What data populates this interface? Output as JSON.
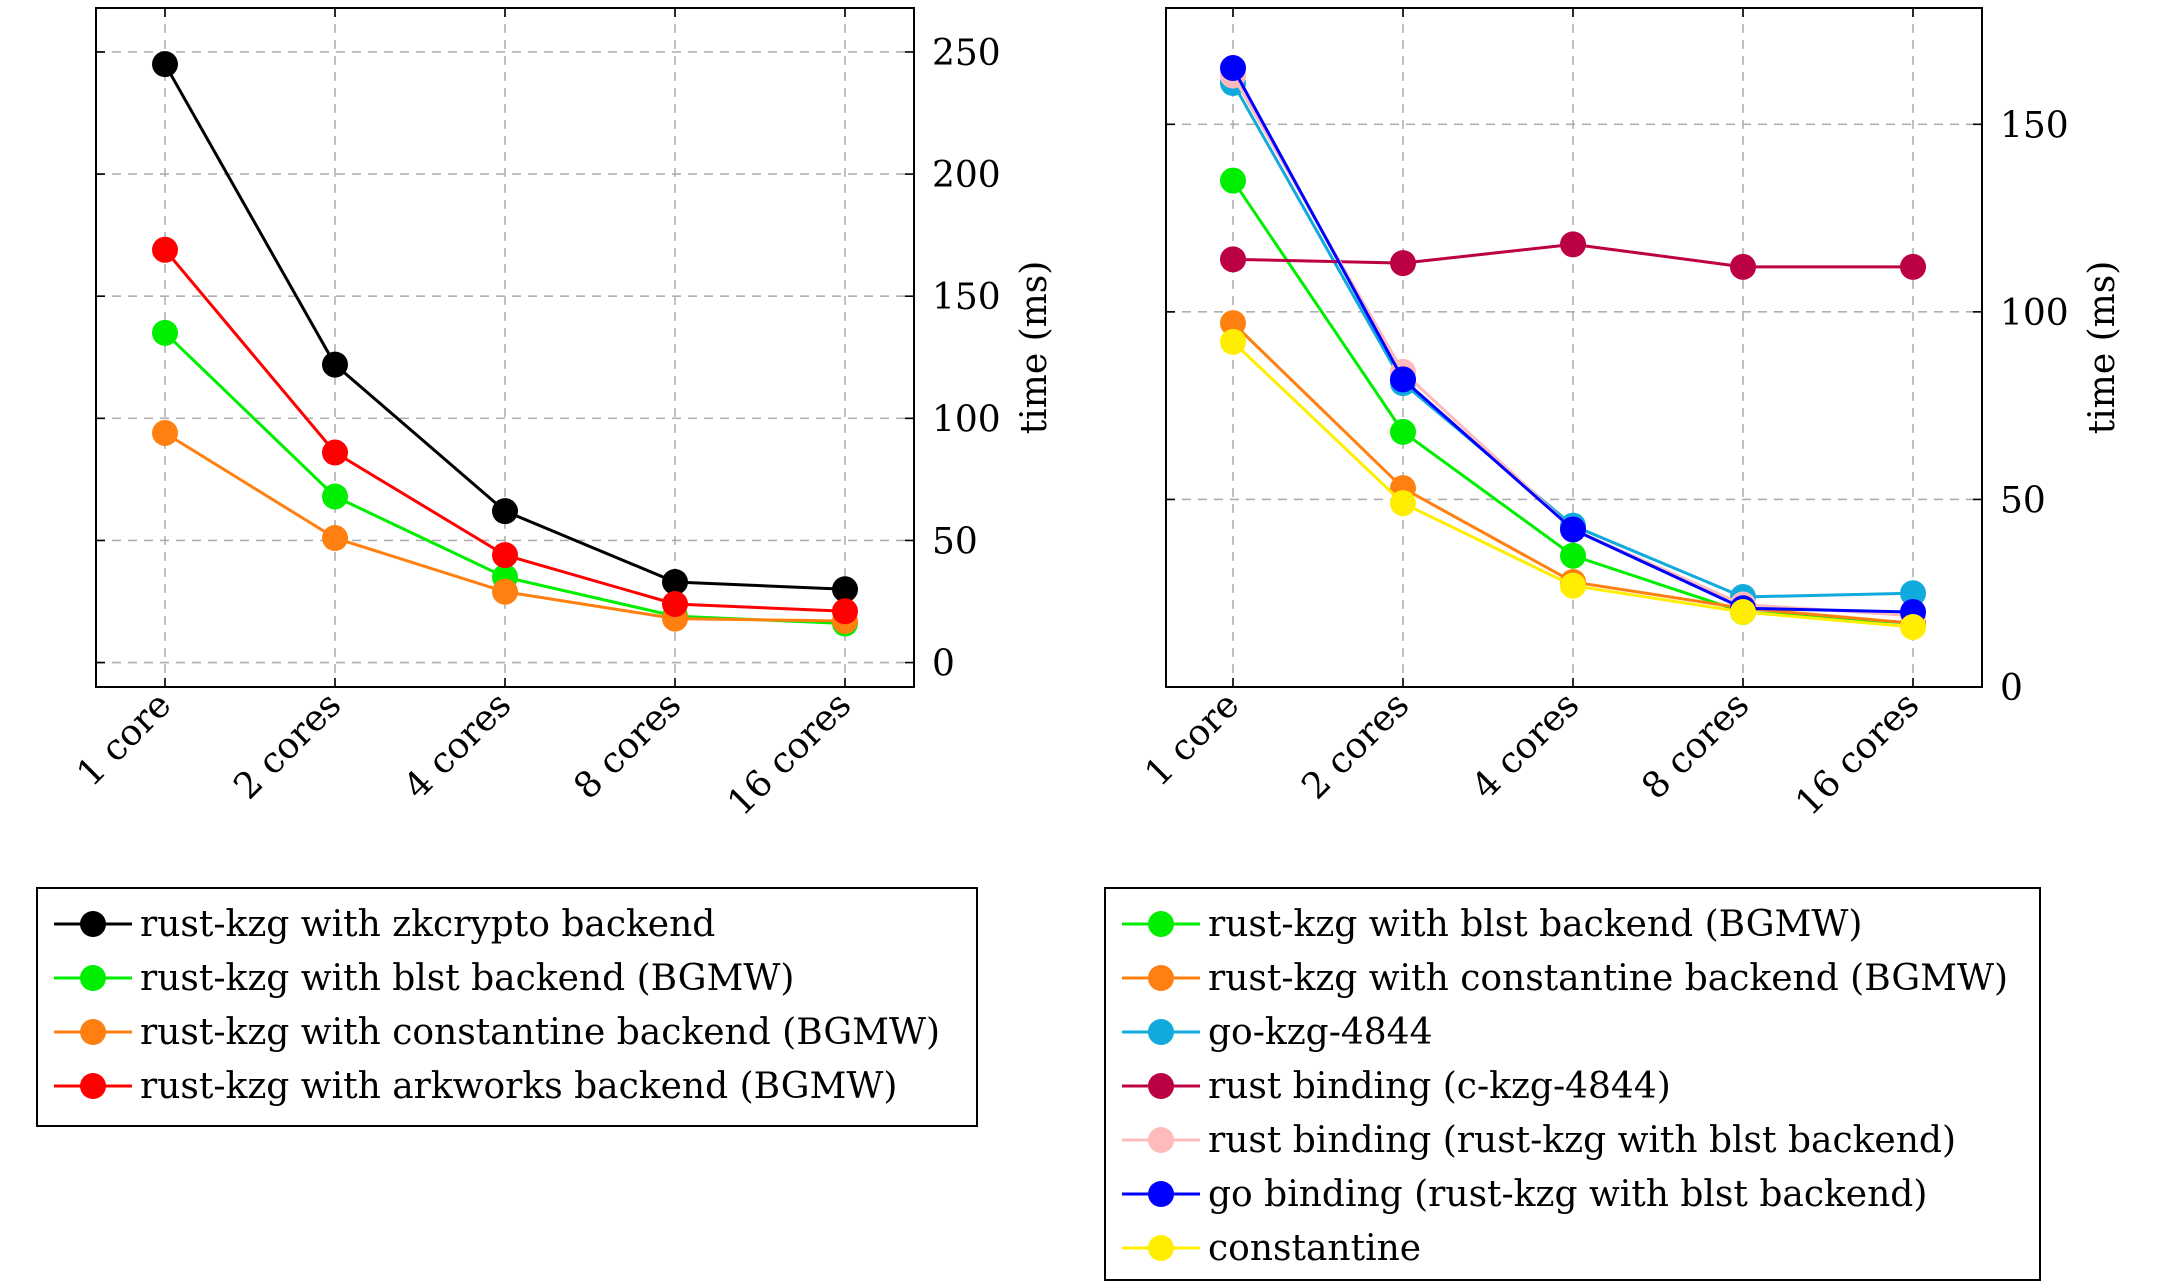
{
  "colors": {
    "axis": "#000000",
    "grid": "#b0b0b0",
    "black": "#000000",
    "green": "#00ee00",
    "orange": "#ff8010",
    "red": "#ff0000",
    "cyan": "#11aadd",
    "crimson": "#bb0044",
    "pink": "#ffbbbb",
    "blue": "#0000ff",
    "yellow": "#ffee00"
  },
  "chart_data": [
    {
      "type": "line",
      "title": "",
      "xlabel": "",
      "ylabel": "time (ms)",
      "y_axis_side": "right",
      "categories": [
        "1 core",
        "2 cores",
        "4 cores",
        "8 cores",
        "16 cores"
      ],
      "yticks": [
        0,
        50,
        100,
        150,
        200,
        250
      ],
      "ylim": [
        -10,
        268
      ],
      "grid": true,
      "legend_placement": "below",
      "series": [
        {
          "name": "rust-kzg with zkcrypto backend",
          "color": "#000000",
          "values": [
            245,
            122,
            62,
            33,
            30
          ]
        },
        {
          "name": "rust-kzg with blst backend (BGMW)",
          "color": "#00ee00",
          "values": [
            135,
            68,
            35,
            19,
            16
          ]
        },
        {
          "name": "rust-kzg with constantine backend (BGMW)",
          "color": "#ff8010",
          "values": [
            94,
            51,
            29,
            18,
            17
          ]
        },
        {
          "name": "rust-kzg with arkworks backend (BGMW)",
          "color": "#ff0000",
          "values": [
            169,
            86,
            44,
            24,
            21
          ]
        }
      ]
    },
    {
      "type": "line",
      "title": "",
      "xlabel": "",
      "ylabel": "time (ms)",
      "y_axis_side": "right",
      "categories": [
        "1 core",
        "2 cores",
        "4 cores",
        "8 cores",
        "16 cores"
      ],
      "yticks": [
        0,
        50,
        100,
        150
      ],
      "ylim": [
        0,
        181
      ],
      "grid": true,
      "legend_placement": "below",
      "series": [
        {
          "name": "rust-kzg with blst backend (BGMW)",
          "color": "#00ee00",
          "values": [
            135,
            68,
            35,
            20,
            17
          ]
        },
        {
          "name": "rust-kzg with constantine backend (BGMW)",
          "color": "#ff8010",
          "values": [
            97,
            53,
            28,
            21,
            17
          ]
        },
        {
          "name": "go-kzg-4844",
          "color": "#11aadd",
          "values": [
            161,
            81,
            43,
            24,
            25
          ]
        },
        {
          "name": "rust binding (c-kzg-4844)",
          "color": "#bb0044",
          "values": [
            114,
            113,
            118,
            112,
            112
          ]
        },
        {
          "name": "rust binding (rust-kzg with blst backend)",
          "color": "#ffbbbb",
          "values": [
            163,
            84,
            42,
            22,
            19
          ]
        },
        {
          "name": "go binding (rust-kzg with blst backend)",
          "color": "#0000ff",
          "values": [
            165,
            82,
            42,
            21,
            20
          ]
        },
        {
          "name": "constantine",
          "color": "#ffee00",
          "values": [
            92,
            49,
            27,
            20,
            16
          ]
        }
      ]
    }
  ],
  "legends": [
    {
      "entries": [
        {
          "label": "rust-kzg with zkcrypto backend",
          "color": "#000000"
        },
        {
          "label": "rust-kzg with blst backend (BGMW)",
          "color": "#00ee00"
        },
        {
          "label": "rust-kzg with constantine backend (BGMW)",
          "color": "#ff8010"
        },
        {
          "label": "rust-kzg with arkworks backend (BGMW)",
          "color": "#ff0000"
        }
      ]
    },
    {
      "entries": [
        {
          "label": "rust-kzg with blst backend (BGMW)",
          "color": "#00ee00"
        },
        {
          "label": "rust-kzg with constantine backend (BGMW)",
          "color": "#ff8010"
        },
        {
          "label": "go-kzg-4844",
          "color": "#11aadd"
        },
        {
          "label": "rust binding (c-kzg-4844)",
          "color": "#bb0044"
        },
        {
          "label": "rust binding (rust-kzg with blst backend)",
          "color": "#ffbbbb"
        },
        {
          "label": "go binding (rust-kzg with blst backend)",
          "color": "#0000ff"
        },
        {
          "label": "constantine",
          "color": "#ffee00"
        }
      ]
    }
  ]
}
